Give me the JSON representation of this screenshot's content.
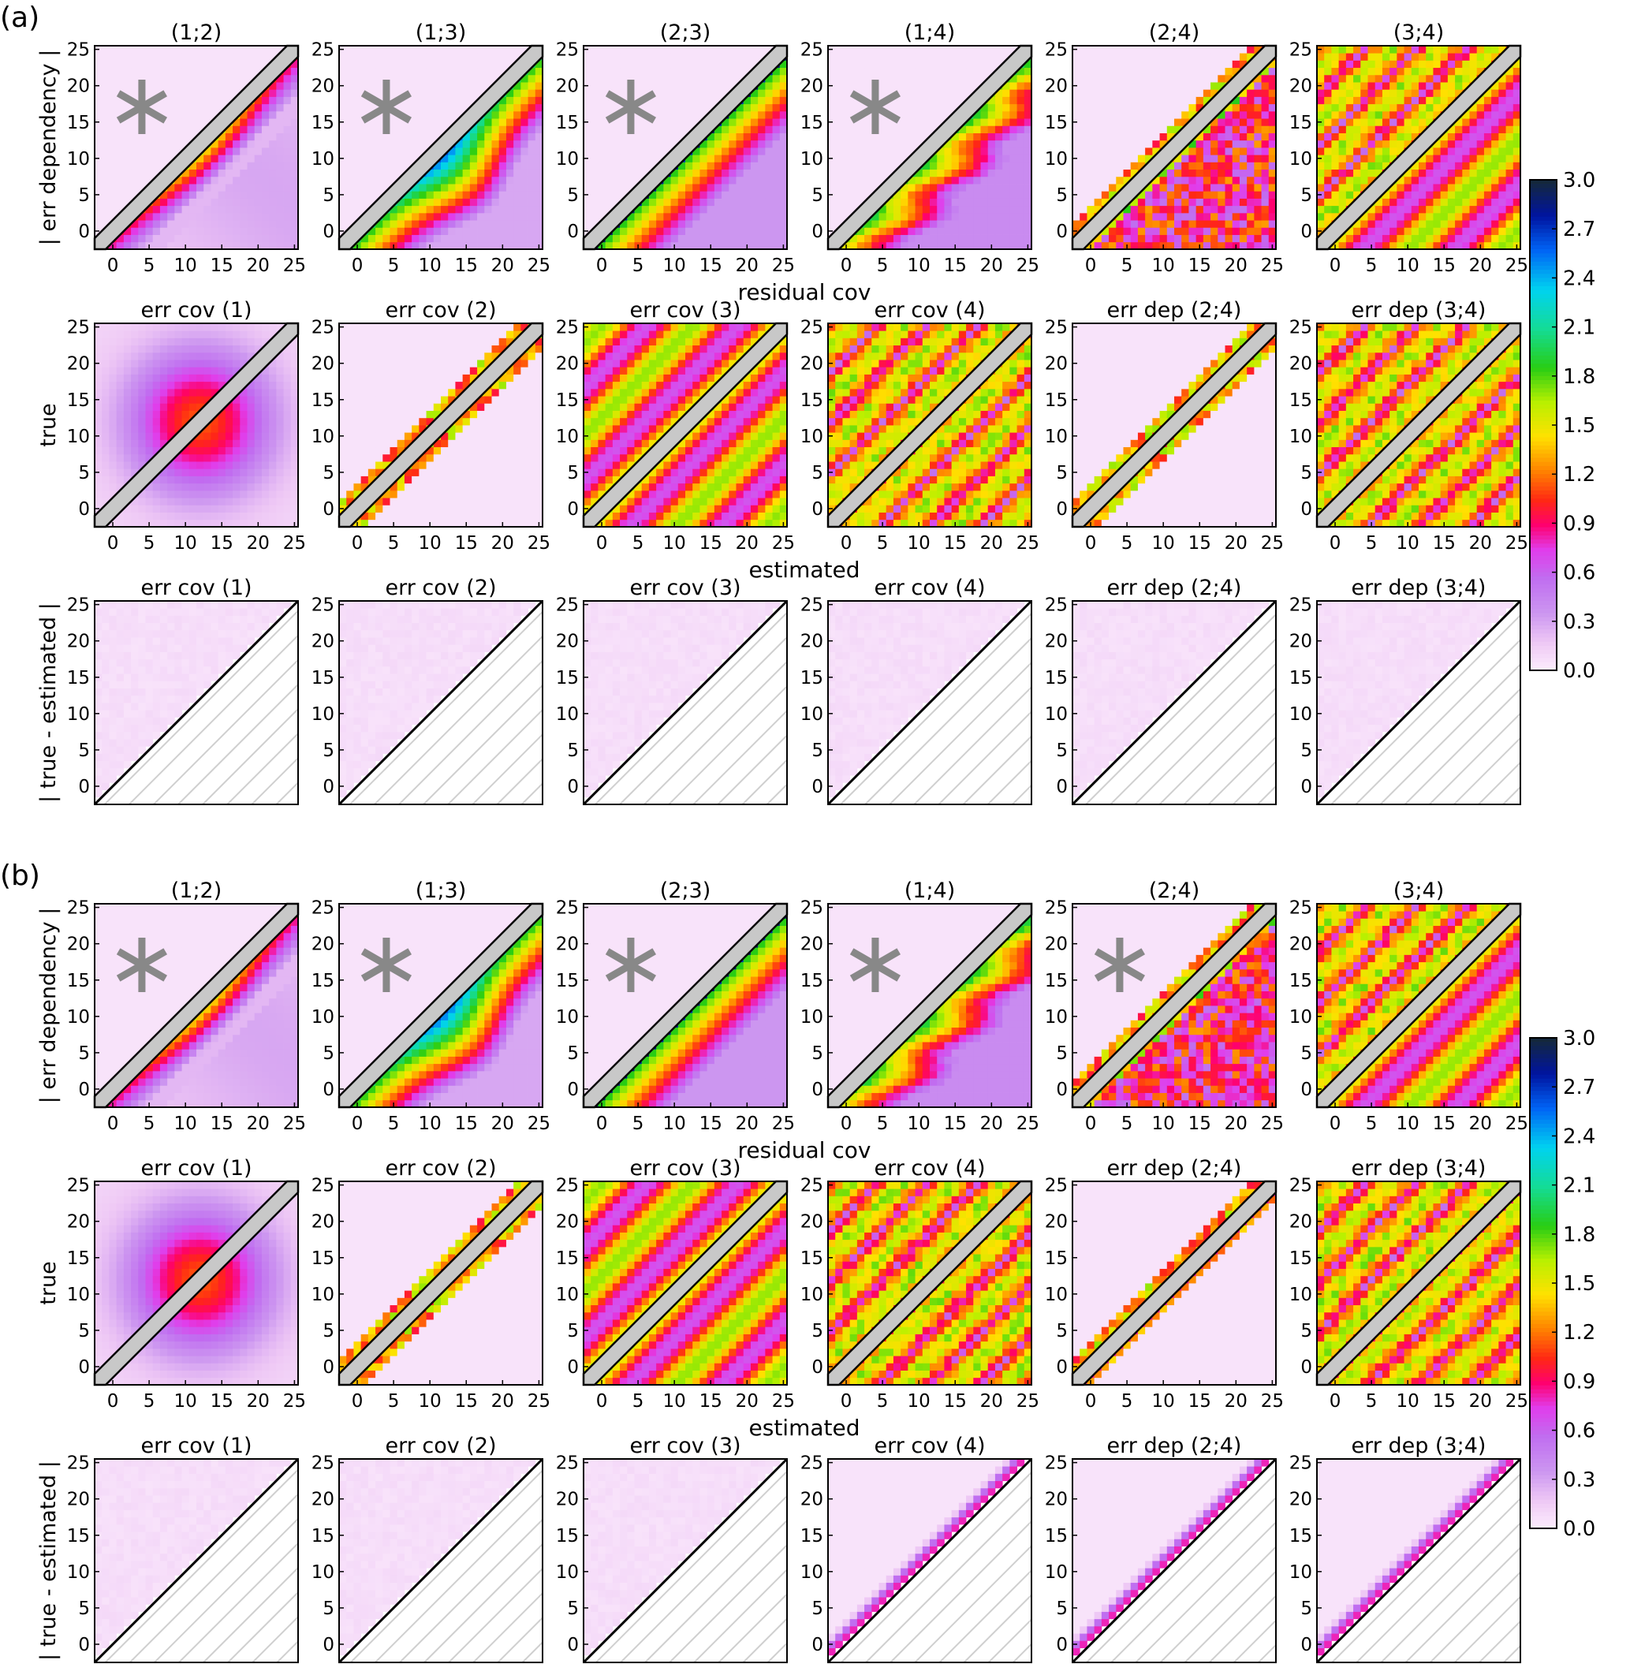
{
  "figure": {
    "panel_labels": [
      "(a)",
      "(b)"
    ],
    "row_labels": [
      "| err dependency |",
      "true",
      "| true - estimated |"
    ],
    "x_labels": [
      "residual cov",
      "estimated",
      ""
    ]
  },
  "colorbar": {
    "ticks": [
      "0.0",
      "0.3",
      "0.6",
      "0.9",
      "1.2",
      "1.5",
      "1.8",
      "2.1",
      "2.4",
      "2.7",
      "3.0"
    ],
    "min": 0,
    "max": 3
  },
  "chart_data": {
    "type": "heatmap",
    "grid_size": 26,
    "axis_ticks": [
      "0",
      "5",
      "10",
      "15",
      "20",
      "25"
    ],
    "xlim": [
      -2,
      25
    ],
    "ylim": [
      -2,
      25
    ],
    "colormap": "white-violet-magenta-red-orange-yellow-green-cyan-blue-darknavy",
    "value_range": [
      0,
      3.0
    ],
    "marker_star": "∗",
    "panels": [
      {
        "label": "(a)",
        "rows": [
          {
            "ylabel": "| err dependency |",
            "xlabel": "residual cov",
            "cells": [
              {
                "title": "(1;2)",
                "star": true,
                "upper": "flat",
                "lower": "ridge_peak",
                "diag": "gray"
              },
              {
                "title": "(1;3)",
                "star": true,
                "upper": "flat",
                "lower": "deep_band",
                "diag": "gray"
              },
              {
                "title": "(2;3)",
                "star": true,
                "upper": "flat",
                "lower": "navy_edge_band",
                "diag": "gray"
              },
              {
                "title": "(1;4)",
                "star": true,
                "upper": "flat",
                "lower": "green_decay",
                "diag": "gray"
              },
              {
                "title": "(2;4)",
                "star": false,
                "upper": "offdiag_narrow",
                "lower": "patchy",
                "diag": "gray"
              },
              {
                "title": "(3;4)",
                "star": false,
                "upper": "patchy_wide",
                "lower": "periodic_band",
                "diag": "gray"
              }
            ]
          },
          {
            "ylabel": "true",
            "xlabel": "estimated",
            "cells": [
              {
                "title": "err cov (1)",
                "star": false,
                "upper": "blob",
                "lower": "blob",
                "diag": "gray"
              },
              {
                "title": "err cov (2)",
                "star": false,
                "upper": "offdiag_narrow",
                "lower": "offdiag_narrow",
                "diag": "gray"
              },
              {
                "title": "err cov (3)",
                "star": false,
                "upper": "periodic_band",
                "lower": "periodic_band",
                "diag": "gray"
              },
              {
                "title": "err cov (4)",
                "star": false,
                "upper": "patchy_wide",
                "lower": "patchy_wide",
                "diag": "gray"
              },
              {
                "title": "err dep (2;4)",
                "star": false,
                "upper": "offdiag_narrow",
                "lower": "offdiag_narrow",
                "diag": "gray"
              },
              {
                "title": "err dep (3;4)",
                "star": false,
                "upper": "patchy_wide",
                "lower": "patchy_wide",
                "diag": "gray"
              }
            ]
          },
          {
            "ylabel": "| true - estimated |",
            "xlabel": "",
            "cells": [
              {
                "title": "err cov (1)",
                "star": false,
                "upper": "near_zero",
                "lower": "hatch",
                "diag": "line"
              },
              {
                "title": "err cov (2)",
                "star": false,
                "upper": "near_zero",
                "lower": "hatch",
                "diag": "line"
              },
              {
                "title": "err cov (3)",
                "star": false,
                "upper": "near_zero",
                "lower": "hatch",
                "diag": "line"
              },
              {
                "title": "err cov (4)",
                "star": false,
                "upper": "near_zero",
                "lower": "hatch",
                "diag": "line"
              },
              {
                "title": "err dep (2;4)",
                "star": false,
                "upper": "near_zero",
                "lower": "hatch",
                "diag": "line"
              },
              {
                "title": "err dep (3;4)",
                "star": false,
                "upper": "near_zero",
                "lower": "hatch",
                "diag": "line"
              }
            ]
          }
        ]
      },
      {
        "label": "(b)",
        "rows": [
          {
            "ylabel": "| err dependency |",
            "xlabel": "residual cov",
            "cells": [
              {
                "title": "(1;2)",
                "star": true,
                "upper": "flat",
                "lower": "ridge_peak",
                "diag": "gray"
              },
              {
                "title": "(1;3)",
                "star": true,
                "upper": "flat",
                "lower": "deep_band",
                "diag": "gray"
              },
              {
                "title": "(2;3)",
                "star": true,
                "upper": "flat",
                "lower": "navy_edge_band",
                "diag": "gray"
              },
              {
                "title": "(1;4)",
                "star": true,
                "upper": "flat",
                "lower": "green_decay",
                "diag": "gray"
              },
              {
                "title": "(2;4)",
                "star": true,
                "upper": "offdiag_narrow",
                "lower": "patchy",
                "diag": "gray"
              },
              {
                "title": "(3;4)",
                "star": false,
                "upper": "patchy_wide",
                "lower": "periodic_band",
                "diag": "gray"
              }
            ]
          },
          {
            "ylabel": "true",
            "xlabel": "estimated",
            "cells": [
              {
                "title": "err cov (1)",
                "star": false,
                "upper": "blob",
                "lower": "blob",
                "diag": "gray"
              },
              {
                "title": "err cov (2)",
                "star": false,
                "upper": "offdiag_narrow",
                "lower": "offdiag_narrow",
                "diag": "gray"
              },
              {
                "title": "err cov (3)",
                "star": false,
                "upper": "periodic_band",
                "lower": "periodic_band",
                "diag": "gray"
              },
              {
                "title": "err cov (4)",
                "star": false,
                "upper": "patchy_wide",
                "lower": "patchy_wide",
                "diag": "gray"
              },
              {
                "title": "err dep (2;4)",
                "star": false,
                "upper": "offdiag_narrow",
                "lower": "offdiag_edge",
                "diag": "gray"
              },
              {
                "title": "err dep (3;4)",
                "star": false,
                "upper": "patchy_wide",
                "lower": "patchy_edge",
                "diag": "gray"
              }
            ]
          },
          {
            "ylabel": "| true - estimated |",
            "xlabel": "",
            "cells": [
              {
                "title": "err cov (1)",
                "star": false,
                "upper": "near_zero",
                "lower": "hatch",
                "diag": "line"
              },
              {
                "title": "err cov (2)",
                "star": false,
                "upper": "near_zero",
                "lower": "hatch",
                "diag": "line"
              },
              {
                "title": "err cov (3)",
                "star": false,
                "upper": "near_zero",
                "lower": "hatch",
                "diag": "line"
              },
              {
                "title": "err cov (4)",
                "star": false,
                "upper": "edge_band",
                "lower": "hatch",
                "diag": "line"
              },
              {
                "title": "err dep (2;4)",
                "star": false,
                "upper": "edge_band",
                "lower": "hatch",
                "diag": "line"
              },
              {
                "title": "err dep (3;4)",
                "star": false,
                "upper": "edge_band",
                "lower": "hatch",
                "diag": "line"
              }
            ]
          }
        ]
      }
    ]
  }
}
